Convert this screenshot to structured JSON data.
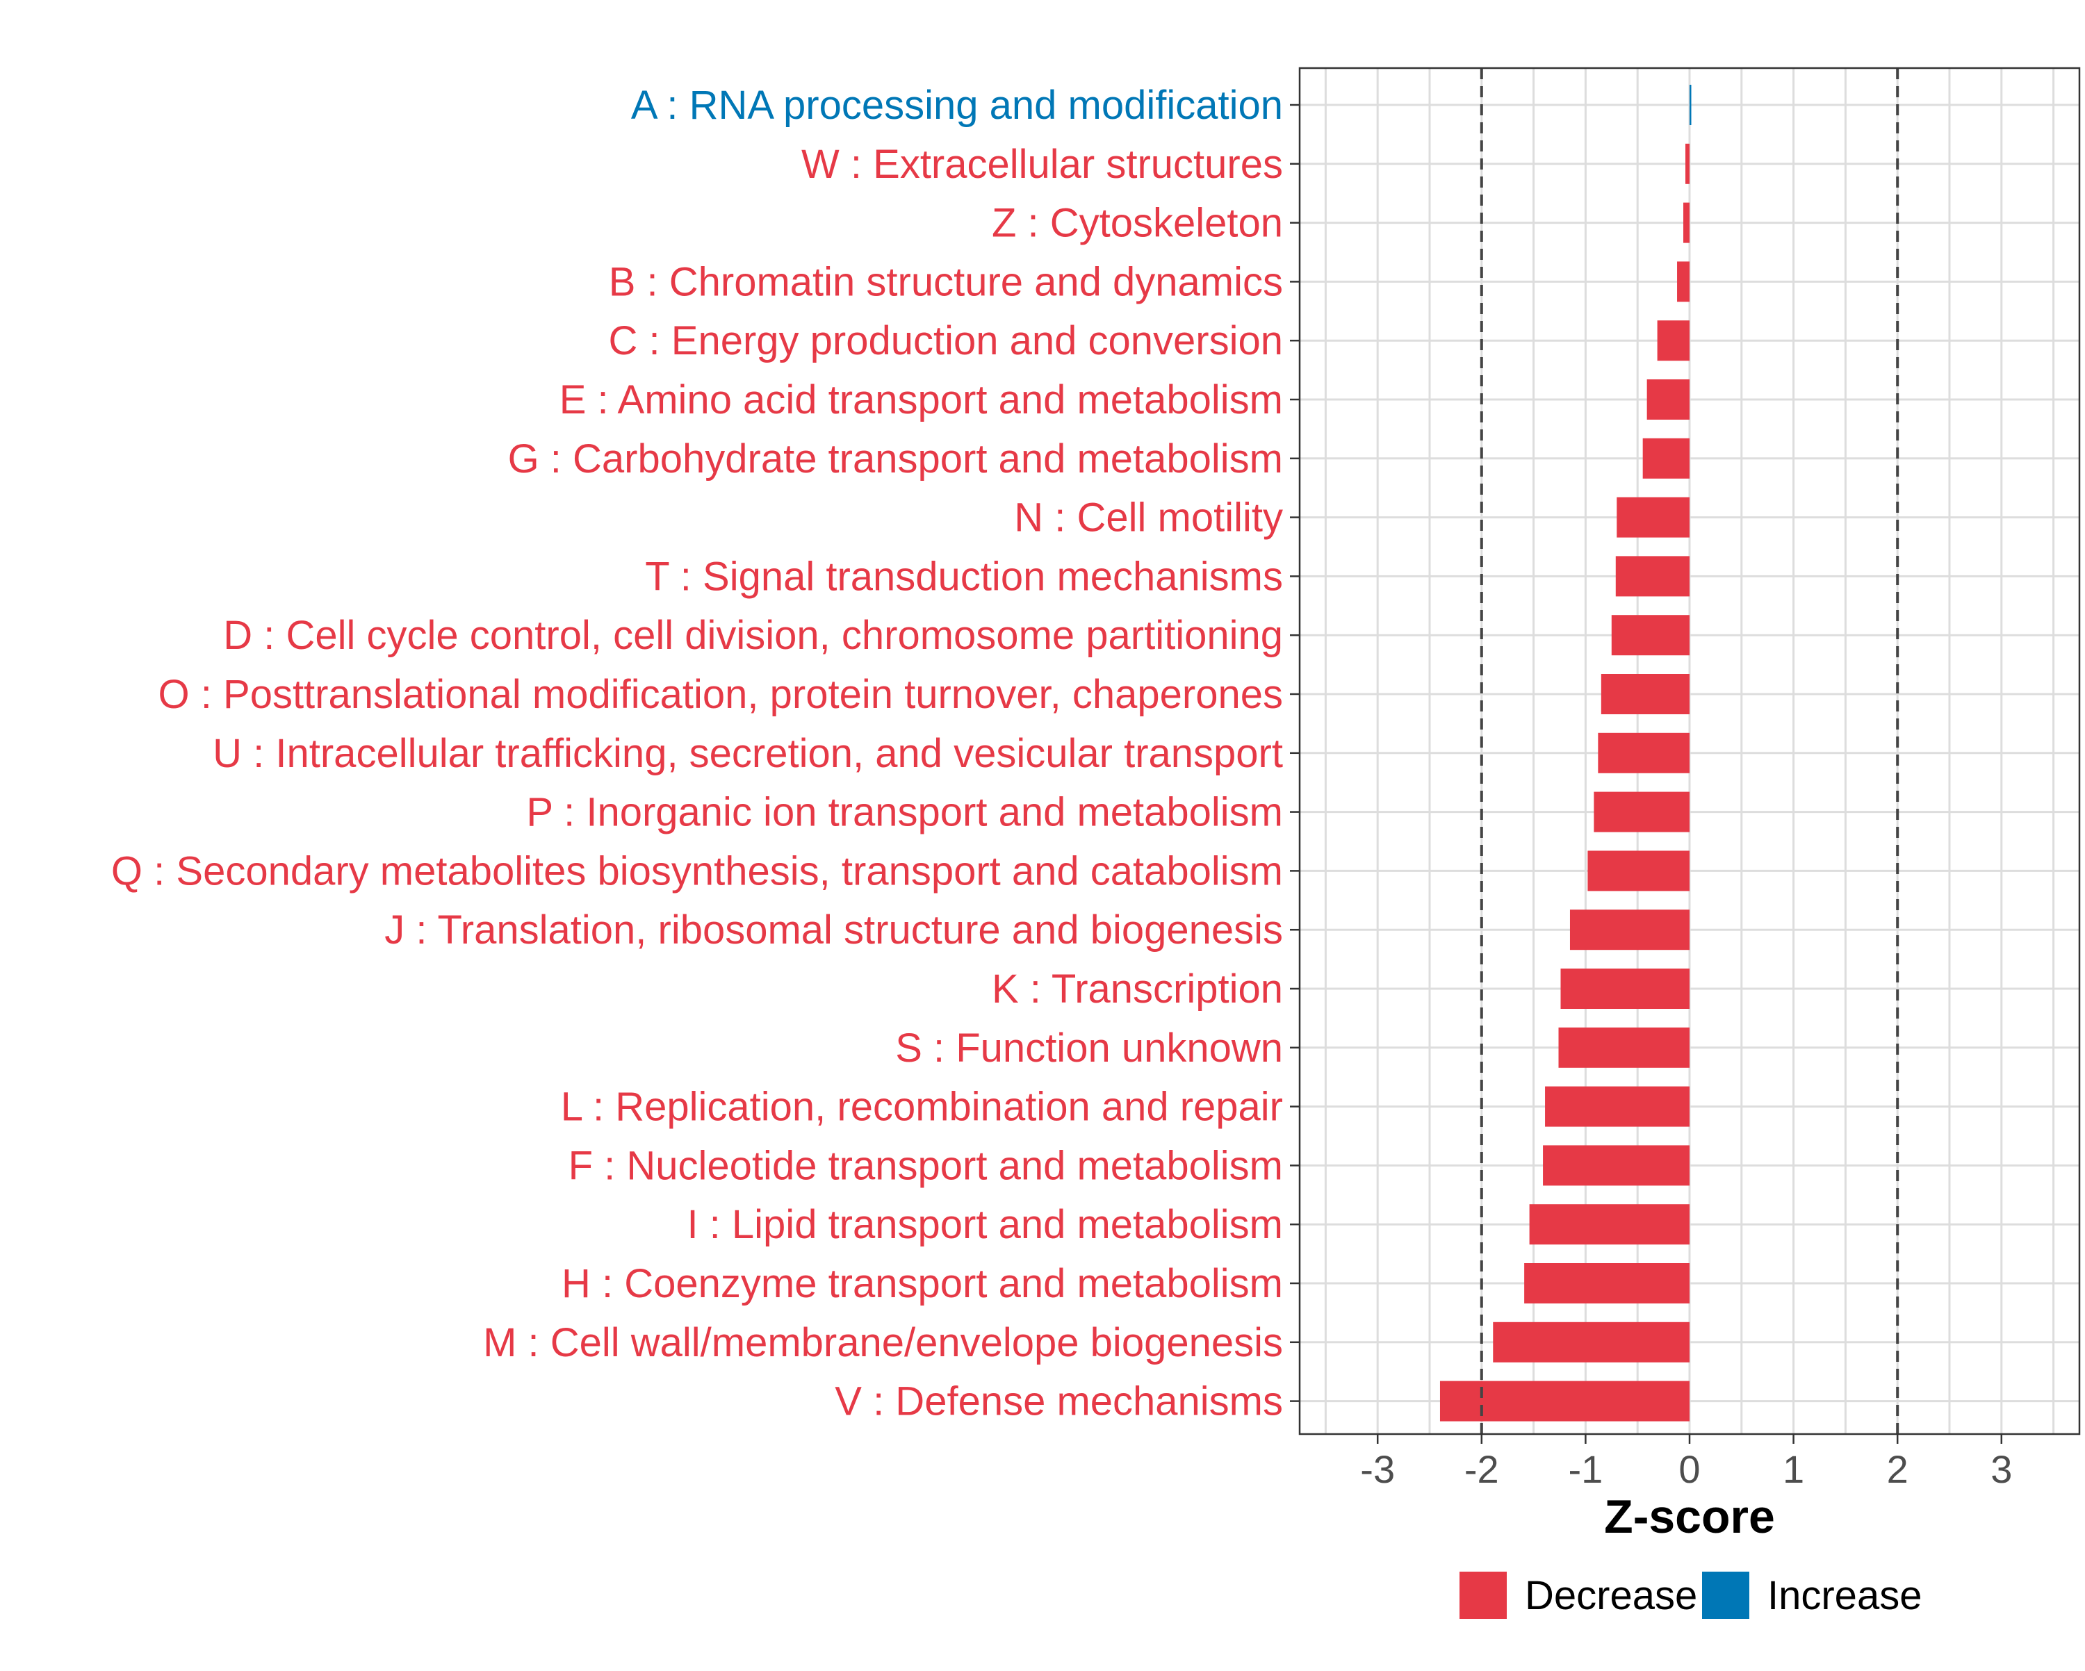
{
  "chart_data": {
    "type": "bar",
    "orientation": "horizontal",
    "xlabel": "Z-score",
    "xlim": [
      -3.75,
      3.75
    ],
    "xticks": [
      -3,
      -2,
      -1,
      0,
      1,
      2,
      3
    ],
    "xtick_labels": [
      "-3",
      "-2",
      "-1",
      "0",
      "1",
      "2",
      "3"
    ],
    "threshold_lines": [
      -2,
      2
    ],
    "grid": true,
    "legend_position": "bottom",
    "categories": [
      "A : RNA processing and modification",
      "W : Extracellular structures",
      "Z : Cytoskeleton",
      "B : Chromatin structure and dynamics",
      "C : Energy production and conversion",
      "E : Amino acid transport and metabolism",
      "G : Carbohydrate transport and metabolism",
      "N : Cell motility",
      "T : Signal transduction mechanisms",
      "D : Cell cycle control, cell division, chromosome partitioning",
      "O : Posttranslational modification, protein turnover, chaperones",
      "U : Intracellular trafficking, secretion, and vesicular transport",
      "P : Inorganic ion transport and metabolism",
      "Q : Secondary metabolites biosynthesis, transport and catabolism",
      "J : Translation, ribosomal structure and biogenesis",
      "K : Transcription",
      "S : Function unknown",
      "L : Replication, recombination and repair",
      "F : Nucleotide transport and metabolism",
      "I : Lipid transport and metabolism",
      "H : Coenzyme transport and metabolism",
      "M : Cell wall/membrane/envelope biogenesis",
      "V : Defense mechanisms"
    ],
    "values": [
      0.01,
      -0.04,
      -0.06,
      -0.12,
      -0.31,
      -0.41,
      -0.45,
      -0.7,
      -0.71,
      -0.75,
      -0.85,
      -0.88,
      -0.92,
      -0.98,
      -1.15,
      -1.24,
      -1.26,
      -1.39,
      -1.41,
      -1.54,
      -1.59,
      -1.89,
      -2.4
    ],
    "groups": [
      "Increase",
      "Decrease",
      "Decrease",
      "Decrease",
      "Decrease",
      "Decrease",
      "Decrease",
      "Decrease",
      "Decrease",
      "Decrease",
      "Decrease",
      "Decrease",
      "Decrease",
      "Decrease",
      "Decrease",
      "Decrease",
      "Decrease",
      "Decrease",
      "Decrease",
      "Decrease",
      "Decrease",
      "Decrease",
      "Decrease"
    ],
    "legend": [
      {
        "label": "Decrease",
        "color": "#E63946"
      },
      {
        "label": "Increase",
        "color": "#0077B6"
      }
    ]
  }
}
